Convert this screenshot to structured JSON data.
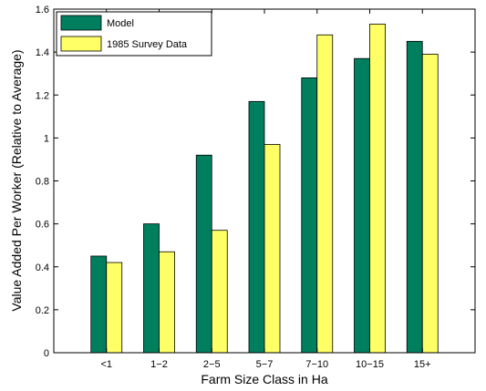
{
  "chart_data": {
    "type": "bar",
    "xlabel": "Farm Size Class in Ha",
    "ylabel": "Value Added Per Worker (Relative to Average)",
    "categories": [
      "<1",
      "1−2",
      "2−5",
      "5−7",
      "7−10",
      "10−15",
      "15+"
    ],
    "series": [
      {
        "name": "Model",
        "color": "#007F5F",
        "values": [
          0.45,
          0.6,
          0.92,
          1.17,
          1.28,
          1.37,
          1.45
        ]
      },
      {
        "name": "1985 Survey Data",
        "color": "#FFFF66",
        "values": [
          0.42,
          0.47,
          0.57,
          0.97,
          1.48,
          1.53,
          1.39
        ]
      }
    ],
    "ylim": [
      0,
      1.6
    ],
    "yticks": [
      0,
      0.2,
      0.4,
      0.6,
      0.8,
      1,
      1.2,
      1.4,
      1.6
    ],
    "grid": false,
    "legend_position": "top-left"
  }
}
